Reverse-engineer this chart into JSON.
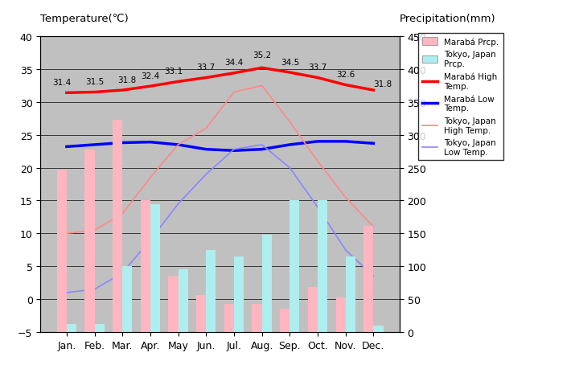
{
  "months": [
    "Jan.",
    "Feb.",
    "Mar.",
    "Apr.",
    "May",
    "Jun.",
    "Jul.",
    "Aug.",
    "Sep.",
    "Oct.",
    "Nov.",
    "Dec."
  ],
  "maraba_prcp": [
    247,
    277,
    323,
    200,
    86,
    56,
    43,
    43,
    35,
    68,
    52,
    162
  ],
  "tokyo_prcp": [
    12,
    12,
    100,
    195,
    95,
    125,
    115,
    148,
    200,
    200,
    115,
    10
  ],
  "maraba_high": [
    31.4,
    31.5,
    31.8,
    32.4,
    33.1,
    33.7,
    34.4,
    35.2,
    34.5,
    33.7,
    32.6,
    31.8
  ],
  "maraba_low": [
    23.2,
    23.5,
    23.8,
    23.9,
    23.5,
    22.8,
    22.6,
    22.8,
    23.5,
    24.0,
    24.0,
    23.7
  ],
  "tokyo_high": [
    10.0,
    10.5,
    13.0,
    18.5,
    23.5,
    26.0,
    31.5,
    32.5,
    27.0,
    21.0,
    15.5,
    11.0
  ],
  "tokyo_low": [
    1.0,
    1.5,
    4.0,
    9.0,
    14.5,
    19.0,
    22.8,
    23.5,
    20.0,
    14.0,
    7.5,
    3.5
  ],
  "maraba_high_labels": [
    "31.4",
    "31.5",
    "31.8",
    "32.4",
    "33.1",
    "33.7",
    "34.4",
    "35.2",
    "34.5",
    "33.7",
    "32.6",
    "31.8"
  ],
  "temp_ylim": [
    -5,
    40
  ],
  "prcp_ylim": [
    0,
    450
  ],
  "maraba_bar_color": "#FFB6C1",
  "tokyo_bar_color": "#AFEEEE",
  "maraba_high_color": "#FF0000",
  "maraba_low_color": "#0000FF",
  "tokyo_high_color": "#FF8888",
  "tokyo_low_color": "#8888FF",
  "bg_color": "#C0C0C0",
  "title_left": "Temperature(℃)",
  "title_right": "Precipitation(mm)",
  "fig_bg": "#FFFFFF"
}
